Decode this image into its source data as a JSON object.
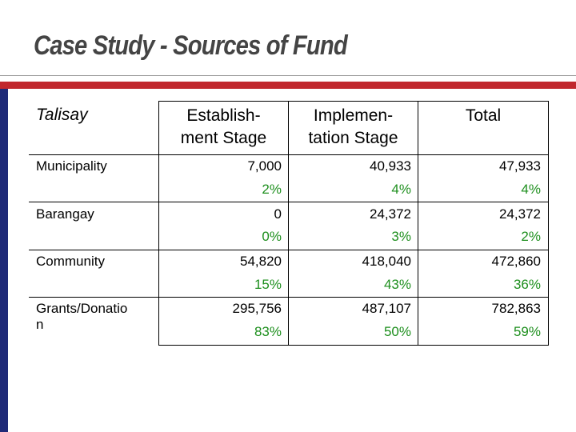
{
  "slide": {
    "title": "Case Study - Sources of Fund"
  },
  "table": {
    "corner_label": "Talisay",
    "headers": {
      "establishment": [
        "Establish-",
        "ment Stage"
      ],
      "implementation": [
        "Implemen-",
        "tation Stage"
      ],
      "total": "Total"
    },
    "rows": [
      {
        "label": [
          "Municipality"
        ],
        "establishment": {
          "value": "7,000",
          "pct": "2%"
        },
        "implementation": {
          "value": "40,933",
          "pct": "4%"
        },
        "total": {
          "value": "47,933",
          "pct": "4%"
        }
      },
      {
        "label": [
          "Barangay"
        ],
        "establishment": {
          "value": "0",
          "pct": "0%"
        },
        "implementation": {
          "value": "24,372",
          "pct": "3%"
        },
        "total": {
          "value": "24,372",
          "pct": "2%"
        }
      },
      {
        "label": [
          "Community"
        ],
        "establishment": {
          "value": "54,820",
          "pct": "15%"
        },
        "implementation": {
          "value": "418,040",
          "pct": "43%"
        },
        "total": {
          "value": "472,860",
          "pct": "36%"
        }
      },
      {
        "label": [
          "Grants/Donatio",
          "n"
        ],
        "establishment": {
          "value": "295,756",
          "pct": "83%"
        },
        "implementation": {
          "value": "487,107",
          "pct": "50%"
        },
        "total": {
          "value": "782,863",
          "pct": "59%"
        }
      }
    ]
  },
  "colors": {
    "title": "#444444",
    "accent_red": "#c1272d",
    "accent_navy": "#1f2a78",
    "percent_green": "#1e8f1e"
  }
}
